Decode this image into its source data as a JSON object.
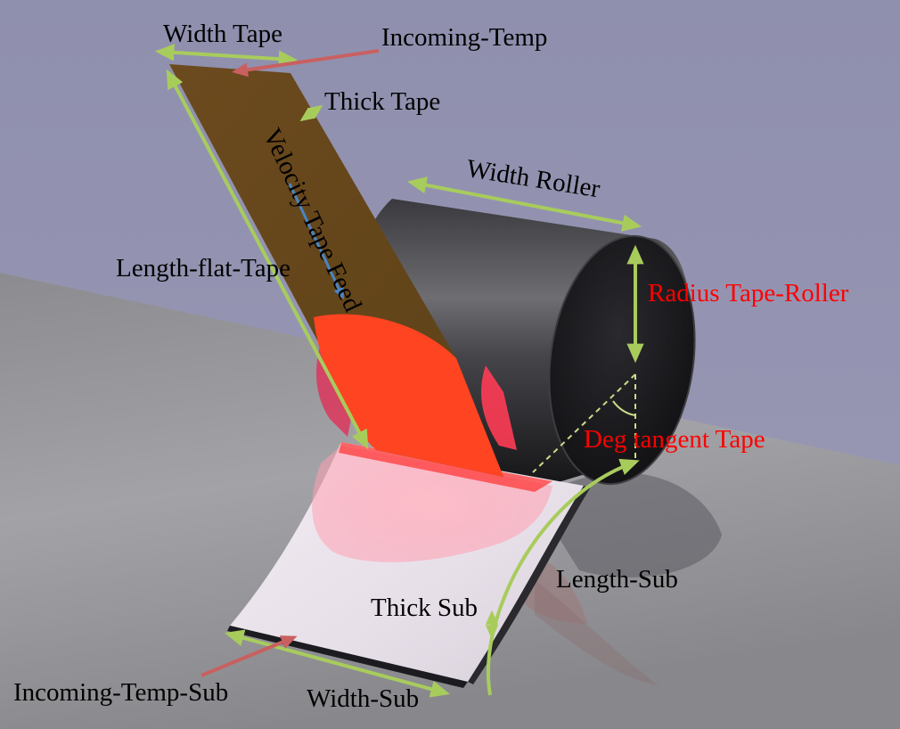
{
  "colors": {
    "background": "#9393b0",
    "label_text": "#000000",
    "label_highlight": "#ff0000",
    "dimension_arrow": "#a8cc5c",
    "temperature_arrow": "#c96060",
    "velocity_arrow": "#4a84c4",
    "tape": "#6b4a1e",
    "heated_zone": "#ff4422",
    "roller": "#2a2a2e"
  },
  "labels": {
    "width_tape": "Width Tape",
    "incoming_temp": "Incoming-Temp",
    "thick_tape": "Thick Tape",
    "velocity_tape_feed": "Velocity Tape Feed",
    "width_roller": "Width Roller",
    "length_flat_tape": "Length-flat-Tape",
    "radius_tape_roller": "Radius Tape-Roller",
    "deg_tangent_tape": "Deg tangent Tape",
    "length_sub": "Length-Sub",
    "thick_sub": "Thick Sub",
    "incoming_temp_sub": "Incoming-Temp-Sub",
    "width_sub": "Width-Sub"
  }
}
